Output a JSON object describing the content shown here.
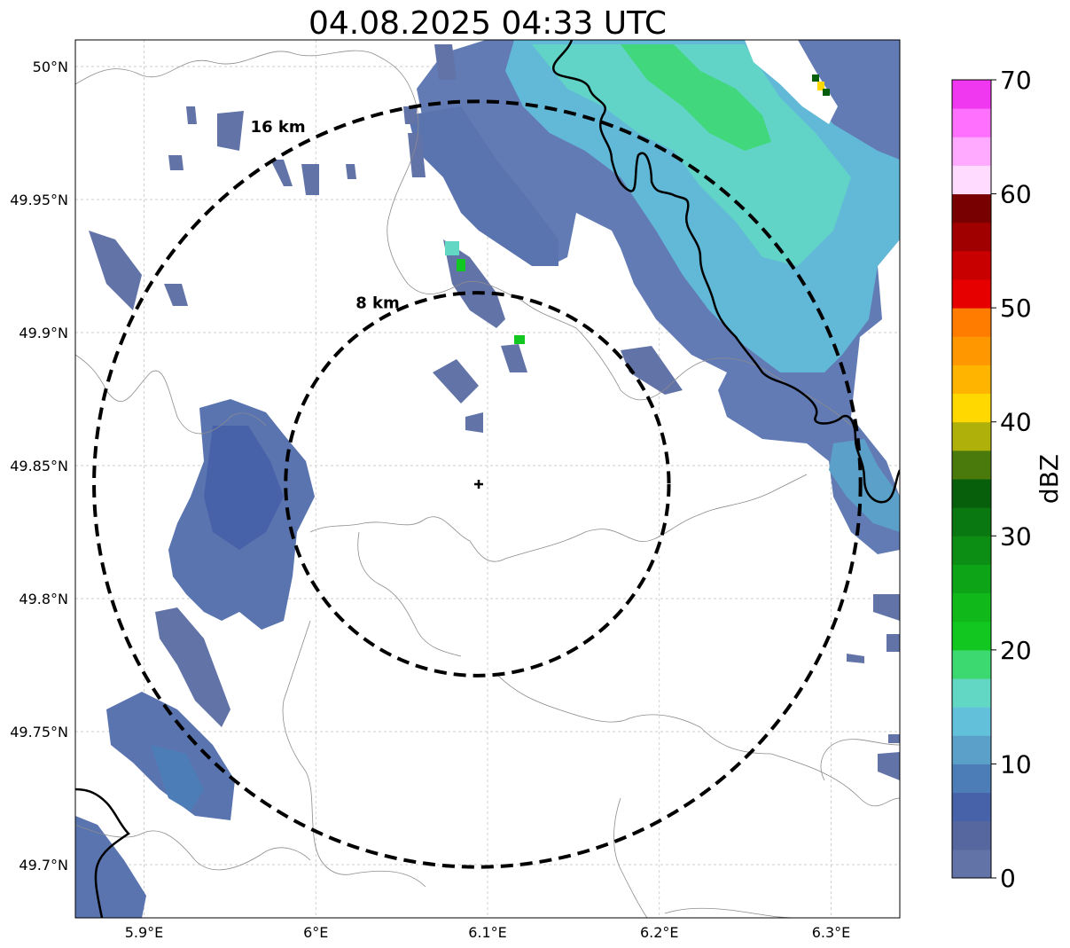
{
  "title": "04.08.2025 04:33 UTC",
  "map": {
    "x_ticks": [
      {
        "lon": 5.9,
        "label": "5.9°E"
      },
      {
        "lon": 6.0,
        "label": "6°E"
      },
      {
        "lon": 6.1,
        "label": "6.1°E"
      },
      {
        "lon": 6.2,
        "label": "6.2°E"
      },
      {
        "lon": 6.3,
        "label": "6.3°E"
      }
    ],
    "y_ticks": [
      {
        "lat": 50.0,
        "label": "50°N"
      },
      {
        "lat": 49.95,
        "label": "49.95°N"
      },
      {
        "lat": 49.9,
        "label": "49.9°N"
      },
      {
        "lat": 49.85,
        "label": "49.85°N"
      },
      {
        "lat": 49.8,
        "label": "49.8°N"
      },
      {
        "lat": 49.75,
        "label": "49.75°N"
      },
      {
        "lat": 49.7,
        "label": "49.7°N"
      }
    ],
    "lon_range": [
      5.86,
      6.34
    ],
    "lat_range": [
      49.68,
      50.01
    ],
    "radar_site": {
      "lon": 6.094,
      "lat": 49.843
    },
    "rings": [
      {
        "radius_km": 8,
        "label": "8 km"
      },
      {
        "radius_km": 16,
        "label": "16 km"
      }
    ]
  },
  "colorbar": {
    "label": "dBZ",
    "ticks": [
      "0",
      "10",
      "20",
      "30",
      "40",
      "50",
      "60",
      "70"
    ],
    "range": [
      0,
      70
    ],
    "colors": [
      "#6273a8",
      "#5667a0",
      "#4762a8",
      "#4d7db6",
      "#5aa0c8",
      "#62c0da",
      "#62d8c4",
      "#3cd870",
      "#12c820",
      "#10b81a",
      "#0ea418",
      "#0c8e14",
      "#097810",
      "#075f0c",
      "#4a7a0c",
      "#b0b00a",
      "#ffd800",
      "#ffb400",
      "#ff9800",
      "#ff7c00",
      "#e60000",
      "#c80000",
      "#a00000",
      "#780000",
      "#ffdcff",
      "#ffaaff",
      "#ff70ff",
      "#f038f0"
    ]
  },
  "precip_cells": [
    {
      "lat": 49.848,
      "lon": 5.962,
      "dbz": 8,
      "rx": 4,
      "ry": 2
    },
    {
      "lat": 49.835,
      "lon": 5.962,
      "dbz": 5,
      "rx": 4,
      "ry": 2
    },
    {
      "lat": 49.82,
      "lon": 5.962,
      "dbz": 4,
      "rx": 4,
      "ry": 2
    },
    {
      "lat": 49.8,
      "lon": 5.944,
      "dbz": 3,
      "rx": 4,
      "ry": 2
    },
    {
      "lat": 49.73,
      "lon": 5.922,
      "dbz": 6,
      "rx": 4,
      "ry": 2
    },
    {
      "lat": 49.74,
      "lon": 5.905,
      "dbz": 4,
      "rx": 3,
      "ry": 2
    },
    {
      "lat": 49.975,
      "lon": 6.12,
      "dbz": 5,
      "rx": 6,
      "ry": 3
    },
    {
      "lat": 49.985,
      "lon": 6.17,
      "dbz": 15,
      "rx": 5,
      "ry": 3
    },
    {
      "lat": 49.98,
      "lon": 6.24,
      "dbz": 18,
      "rx": 4,
      "ry": 2
    },
    {
      "lat": 49.96,
      "lon": 6.23,
      "dbz": 15,
      "rx": 4,
      "ry": 2
    },
    {
      "lat": 49.94,
      "lon": 6.25,
      "dbz": 13,
      "rx": 4,
      "ry": 2
    },
    {
      "lat": 49.92,
      "lon": 6.23,
      "dbz": 12,
      "rx": 4,
      "ry": 2
    },
    {
      "lat": 49.9,
      "lon": 6.27,
      "dbz": 14,
      "rx": 4,
      "ry": 2
    },
    {
      "lat": 49.955,
      "lon": 6.21,
      "dbz": 21,
      "rx": 2,
      "ry": 1
    },
    {
      "lat": 49.99,
      "lon": 6.26,
      "dbz": 19,
      "rx": 3,
      "ry": 1
    },
    {
      "lat": 49.97,
      "lon": 6.2,
      "dbz": 22,
      "rx": 2,
      "ry": 1
    },
    {
      "lat": 49.995,
      "lon": 6.29,
      "dbz": 40,
      "rx": 1,
      "ry": 1
    },
    {
      "lat": 49.995,
      "lon": 6.295,
      "dbz": 33,
      "rx": 1,
      "ry": 1
    },
    {
      "lat": 49.93,
      "lon": 6.09,
      "dbz": 23,
      "rx": 1,
      "ry": 1
    },
    {
      "lat": 49.895,
      "lon": 6.12,
      "dbz": 22,
      "rx": 1,
      "ry": 1
    },
    {
      "lat": 49.86,
      "lon": 6.3,
      "dbz": 13,
      "rx": 3,
      "ry": 2
    },
    {
      "lat": 49.97,
      "lon": 6.1,
      "dbz": 7,
      "rx": 4,
      "ry": 2
    },
    {
      "lat": 49.94,
      "lon": 6.16,
      "dbz": 6,
      "rx": 4,
      "ry": 2
    }
  ]
}
